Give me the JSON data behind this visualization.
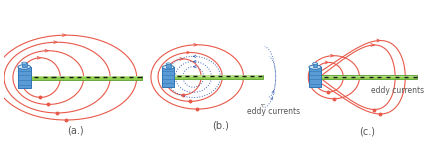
{
  "bg_color": "#ffffff",
  "coil_fill": "#5b9bd5",
  "coil_edge": "#2e75b6",
  "coil_inner": "#ffffff",
  "plate_fill": "#92d050",
  "plate_edge": "#5a9e2f",
  "plate_top": "#c6efce",
  "dash_color": "#1a1a1a",
  "field_color": "#e8594a",
  "eddy_color": "#4169b8",
  "text_color": "#555555",
  "dot_color": "#e8594a",
  "panels": [
    "(a.)",
    "(b.)",
    "(c.)"
  ]
}
